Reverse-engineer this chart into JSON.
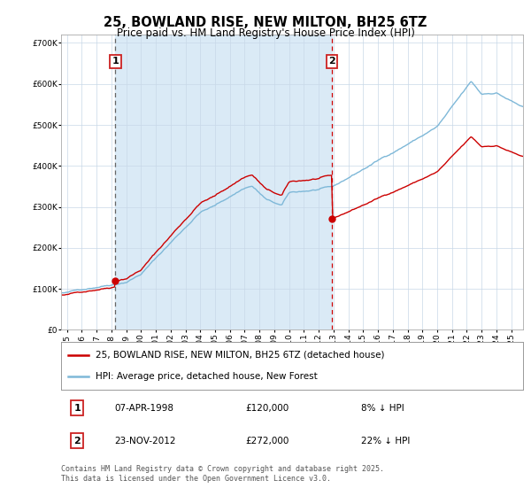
{
  "title": "25, BOWLAND RISE, NEW MILTON, BH25 6TZ",
  "subtitle": "Price paid vs. HM Land Registry's House Price Index (HPI)",
  "legend_entry1": "25, BOWLAND RISE, NEW MILTON, BH25 6TZ (detached house)",
  "legend_entry2": "HPI: Average price, detached house, New Forest",
  "annotation1_date": "07-APR-1998",
  "annotation1_price": "£120,000",
  "annotation1_hpi": "8% ↓ HPI",
  "annotation2_date": "23-NOV-2012",
  "annotation2_price": "£272,000",
  "annotation2_hpi": "22% ↓ HPI",
  "sale1_year": 1998.27,
  "sale1_price": 120000,
  "sale2_year": 2012.9,
  "sale2_price": 272000,
  "ylim": [
    0,
    720000
  ],
  "xlim_start": 1994.6,
  "xlim_end": 2025.8,
  "background_color": "#ffffff",
  "shading_color": "#daeaf6",
  "red_line_color": "#cc0000",
  "blue_line_color": "#7eb8d8",
  "vline1_color": "#666666",
  "vline2_color": "#cc0000",
  "grid_color": "#c8d8e8",
  "footer_text": "Contains HM Land Registry data © Crown copyright and database right 2025.\nThis data is licensed under the Open Government Licence v3.0.",
  "title_fontsize": 10.5,
  "subtitle_fontsize": 8.5,
  "tick_fontsize": 6.5,
  "legend_fontsize": 7.5,
  "annotation_fontsize": 7.5,
  "footer_fontsize": 6.0
}
